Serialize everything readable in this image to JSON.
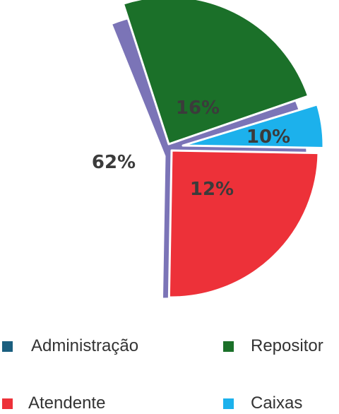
{
  "chart_data": {
    "type": "pie",
    "slices": [
      {
        "label": "Administração",
        "value": 62,
        "display": "62%",
        "color": "#7b74b7"
      },
      {
        "label": "Repositor",
        "value": 16,
        "display": "16%",
        "color": "#1b7029"
      },
      {
        "label": "Caixas",
        "value": 10,
        "display": "10%",
        "color": "#1cb1ec"
      },
      {
        "label": "Atendente",
        "value": 12,
        "display": "12%",
        "color": "#ed3139"
      }
    ],
    "legend": [
      {
        "label": "Administração",
        "color": "#1b5f7f"
      },
      {
        "label": "Repositor",
        "color": "#1b7029"
      },
      {
        "label": "Atendente",
        "color": "#ed3139"
      },
      {
        "label": "Caixas",
        "color": "#1cb1ec"
      }
    ],
    "legend_position": "bottom"
  }
}
